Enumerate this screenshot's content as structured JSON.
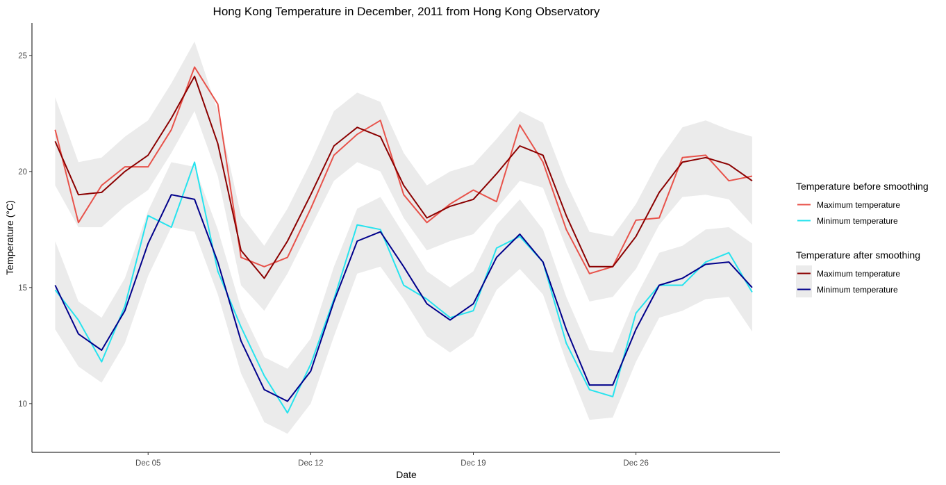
{
  "chart_data": {
    "type": "line",
    "title": "Hong Kong Temperature in December, 2011 from Hong Kong Observatory",
    "xlabel": "Date",
    "ylabel": "Temperature (°C)",
    "x": [
      1,
      2,
      3,
      4,
      5,
      6,
      7,
      8,
      9,
      10,
      11,
      12,
      13,
      14,
      15,
      16,
      17,
      18,
      19,
      20,
      21,
      22,
      23,
      24,
      25,
      26,
      27,
      28,
      29,
      30,
      31
    ],
    "x_ticks": [
      {
        "day": 5,
        "label": "Dec 05"
      },
      {
        "day": 12,
        "label": "Dec 12"
      },
      {
        "day": 19,
        "label": "Dec 19"
      },
      {
        "day": 26,
        "label": "Dec 26"
      }
    ],
    "y_ticks": [
      10,
      15,
      20,
      25
    ],
    "xlim": [
      0,
      32.2
    ],
    "ylim": [
      7.9,
      26.4
    ],
    "grid": false,
    "legend_position": "right",
    "legend_groups": [
      {
        "title": "Temperature before smoothing",
        "entries": [
          {
            "label": "Maximum temperature",
            "color": "#e8524a"
          },
          {
            "label": "Minimum temperature",
            "color": "#26e3ee"
          }
        ]
      },
      {
        "title": "Temperature after smoothing",
        "entries": [
          {
            "label": "Maximum temperature",
            "color": "#8b0000"
          },
          {
            "label": "Minimum temperature",
            "color": "#00008b"
          }
        ]
      }
    ],
    "band_color": "#ebebeb",
    "series": [
      {
        "name": "Maximum temperature",
        "group": "before",
        "color": "#e8524a",
        "values": [
          21.8,
          17.8,
          19.4,
          20.2,
          20.2,
          21.8,
          24.5,
          22.9,
          16.3,
          15.9,
          16.3,
          18.4,
          20.7,
          21.6,
          22.2,
          19.0,
          17.8,
          18.6,
          19.2,
          18.7,
          22.0,
          20.4,
          17.5,
          15.6,
          15.9,
          17.9,
          18.0,
          20.6,
          20.7,
          19.6,
          19.8
        ]
      },
      {
        "name": "Minimum temperature",
        "group": "before",
        "color": "#26e3ee",
        "values": [
          14.9,
          13.6,
          11.8,
          14.2,
          18.1,
          17.6,
          20.4,
          15.7,
          13.3,
          11.2,
          9.6,
          11.7,
          14.5,
          17.7,
          17.5,
          15.1,
          14.5,
          13.7,
          14.0,
          16.7,
          17.2,
          16.1,
          12.6,
          10.6,
          10.3,
          13.9,
          15.1,
          15.1,
          16.1,
          16.5,
          14.8
        ]
      },
      {
        "name": "Maximum temperature",
        "group": "after",
        "color": "#8b0000",
        "values": [
          21.3,
          19.0,
          19.1,
          20.0,
          20.7,
          22.3,
          24.1,
          21.2,
          16.6,
          15.4,
          17.0,
          19.0,
          21.1,
          21.9,
          21.5,
          19.4,
          18.0,
          18.5,
          18.8,
          19.9,
          21.1,
          20.7,
          18.1,
          15.9,
          15.9,
          17.2,
          19.1,
          20.4,
          20.6,
          20.3,
          19.6
        ]
      },
      {
        "name": "Minimum temperature",
        "group": "after",
        "color": "#00008b",
        "values": [
          15.1,
          13.0,
          12.3,
          14.0,
          16.9,
          19.0,
          18.8,
          16.1,
          12.7,
          10.6,
          10.1,
          11.4,
          14.4,
          17.0,
          17.4,
          15.9,
          14.3,
          13.6,
          14.3,
          16.3,
          17.3,
          16.1,
          13.2,
          10.8,
          10.8,
          13.2,
          15.1,
          15.4,
          16.0,
          16.1,
          15.0
        ]
      }
    ],
    "bands": [
      {
        "name": "Maximum temperature confidence band",
        "lower": [
          19.4,
          17.6,
          17.6,
          18.5,
          19.2,
          20.8,
          22.6,
          19.8,
          15.1,
          14.0,
          15.6,
          17.6,
          19.6,
          20.4,
          20.0,
          18.0,
          16.6,
          17.0,
          17.3,
          18.4,
          19.6,
          19.3,
          16.7,
          14.4,
          14.6,
          15.8,
          17.7,
          18.9,
          19.0,
          18.8,
          17.7
        ],
        "upper": [
          23.2,
          20.4,
          20.6,
          21.5,
          22.2,
          23.8,
          25.6,
          22.6,
          18.1,
          16.8,
          18.4,
          20.4,
          22.6,
          23.4,
          23.0,
          20.8,
          19.4,
          20.0,
          20.3,
          21.4,
          22.6,
          22.1,
          19.5,
          17.4,
          17.2,
          18.6,
          20.5,
          21.9,
          22.2,
          21.8,
          21.5
        ]
      },
      {
        "name": "Minimum temperature confidence band",
        "lower": [
          13.2,
          11.6,
          10.9,
          12.6,
          15.5,
          17.6,
          17.4,
          14.7,
          11.3,
          9.2,
          8.7,
          10.0,
          12.9,
          15.6,
          15.9,
          14.5,
          12.9,
          12.2,
          12.9,
          14.9,
          15.8,
          14.7,
          11.8,
          9.3,
          9.4,
          11.8,
          13.7,
          14.0,
          14.5,
          14.6,
          13.1
        ],
        "upper": [
          17.0,
          14.4,
          13.7,
          15.4,
          18.3,
          20.4,
          20.2,
          17.5,
          14.1,
          12.0,
          11.5,
          12.8,
          15.9,
          18.4,
          18.9,
          17.3,
          15.7,
          15.0,
          15.7,
          17.7,
          18.8,
          17.5,
          14.6,
          12.3,
          12.2,
          14.6,
          16.5,
          16.8,
          17.5,
          17.6,
          16.9
        ]
      }
    ]
  }
}
